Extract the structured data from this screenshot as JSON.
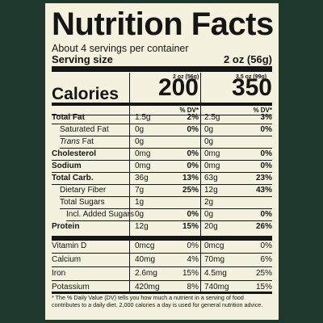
{
  "title": "Nutrition Facts",
  "servings_per_container": "About 4 servings per container",
  "serving_size_label": "Serving size",
  "serving_size_value": "2 oz (56g)",
  "columns": [
    {
      "header": "2 oz (56g)",
      "calories": "200"
    },
    {
      "header": "3.5 oz (99g)",
      "calories": "350"
    }
  ],
  "calories_label": "Calories",
  "dv_header": "% DV*",
  "nutrients": [
    {
      "label": "Total Fat",
      "bold": true,
      "indent": 0,
      "c1_amt": "1.5g",
      "c1_dv": "2%",
      "c2_amt": "2.5g",
      "c2_dv": "3%"
    },
    {
      "label": "Saturated Fat",
      "bold": false,
      "indent": 1,
      "c1_amt": "0g",
      "c1_dv": "0%",
      "c2_amt": "0g",
      "c2_dv": "0%"
    },
    {
      "label_italic": "Trans",
      "label": " Fat",
      "bold": false,
      "indent": 1,
      "c1_amt": "0g",
      "c1_dv": "",
      "c2_amt": "0g",
      "c2_dv": ""
    },
    {
      "label": "Cholesterol",
      "bold": true,
      "indent": 0,
      "c1_amt": "0mg",
      "c1_dv": "0%",
      "c2_amt": "0mg",
      "c2_dv": "0%"
    },
    {
      "label": "Sodium",
      "bold": true,
      "indent": 0,
      "c1_amt": "0mg",
      "c1_dv": "0%",
      "c2_amt": "0mg",
      "c2_dv": "0%"
    },
    {
      "label": "Total Carb.",
      "bold": true,
      "indent": 0,
      "c1_amt": "36g",
      "c1_dv": "13%",
      "c2_amt": "63g",
      "c2_dv": "23%"
    },
    {
      "label": "Dietary Fiber",
      "bold": false,
      "indent": 1,
      "c1_amt": "7g",
      "c1_dv": "25%",
      "c2_amt": "12g",
      "c2_dv": "43%"
    },
    {
      "label": "Total Sugars",
      "bold": false,
      "indent": 1,
      "c1_amt": "1g",
      "c1_dv": "",
      "c2_amt": "2g",
      "c2_dv": ""
    },
    {
      "label": "Incl. Added Sugars",
      "bold": false,
      "indent": 2,
      "c1_amt": "0g",
      "c1_dv": "0%",
      "c2_amt": "0g",
      "c2_dv": "0%"
    },
    {
      "label": "Protein",
      "bold": true,
      "indent": 0,
      "c1_amt": "12g",
      "c1_dv": "15%",
      "c2_amt": "20g",
      "c2_dv": "26%"
    }
  ],
  "vitamins": [
    {
      "label": "Vitamin D",
      "c1_amt": "0mcg",
      "c1_dv": "0%",
      "c2_amt": "0mcg",
      "c2_dv": "0%"
    },
    {
      "label": "Calcium",
      "c1_amt": "40mg",
      "c1_dv": "4%",
      "c2_amt": "70mg",
      "c2_dv": "6%"
    },
    {
      "label": "Iron",
      "c1_amt": "2.6mg",
      "c1_dv": "15%",
      "c2_amt": "4.5mg",
      "c2_dv": "25%"
    },
    {
      "label": "Potassium",
      "c1_amt": "420mg",
      "c1_dv": "8%",
      "c2_amt": "740mg",
      "c2_dv": "15%"
    }
  ],
  "footnote": "* The % Daily Value (DV) tells you how much a nutrient in a serving of food contributes to a daily diet. 2,000 calories a day is used for general nutrition advice.",
  "colors": {
    "background": "#1f3a2c",
    "panel": "#f4f1de",
    "ink": "#151515"
  }
}
